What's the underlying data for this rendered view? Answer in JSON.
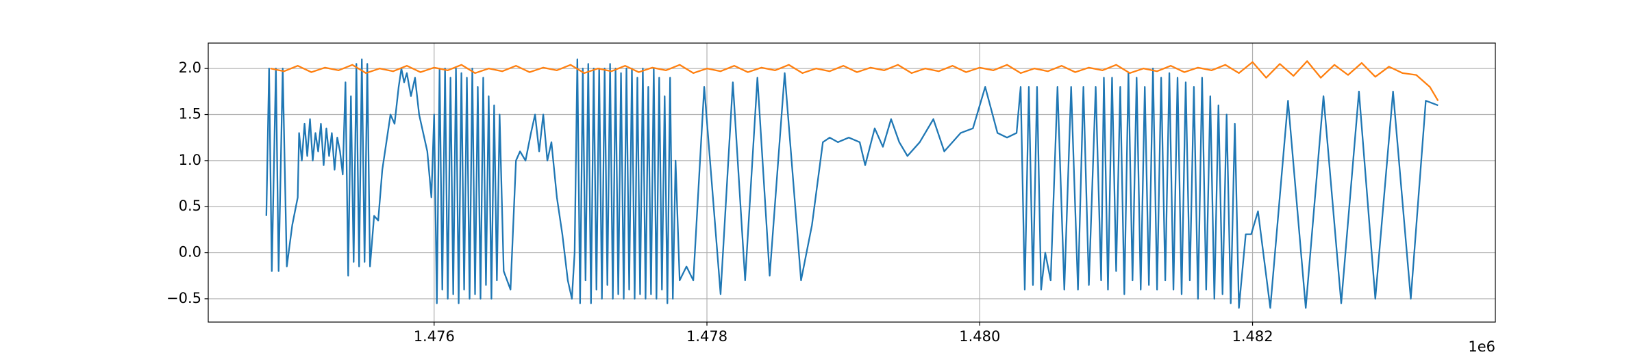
{
  "chart_data": {
    "type": "line",
    "xlim": [
      1474344,
      1483780
    ],
    "ylim": [
      -0.753,
      2.276
    ],
    "xticks": [
      {
        "value": 1476000,
        "label": "1.476"
      },
      {
        "value": 1478000,
        "label": "1.478"
      },
      {
        "value": 1480000,
        "label": "1.480"
      },
      {
        "value": 1482000,
        "label": "1.482"
      }
    ],
    "yticks": [
      {
        "value": -0.5,
        "label": "−0.5"
      },
      {
        "value": 0,
        "label": "0.0"
      },
      {
        "value": 0.5,
        "label": "0.5"
      },
      {
        "value": 1,
        "label": "1.0"
      },
      {
        "value": 1.5,
        "label": "1.5"
      },
      {
        "value": 2,
        "label": "2.0"
      }
    ],
    "x_offset_label": "1e6",
    "grid": true,
    "series": [
      {
        "color": "#1f77b4",
        "x": [
          1474770,
          1474790,
          1474810,
          1474840,
          1474860,
          1474890,
          1474920,
          1474960,
          1475000,
          1475010,
          1475030,
          1475050,
          1475070,
          1475090,
          1475110,
          1475130,
          1475150,
          1475170,
          1475190,
          1475210,
          1475230,
          1475250,
          1475270,
          1475290,
          1475310,
          1475330,
          1475350,
          1475370,
          1475390,
          1475410,
          1475430,
          1475450,
          1475470,
          1475490,
          1475510,
          1475530,
          1475560,
          1475590,
          1475620,
          1475650,
          1475680,
          1475710,
          1475740,
          1475760,
          1475780,
          1475800,
          1475830,
          1475860,
          1475890,
          1475920,
          1475950,
          1475980,
          1476000,
          1476020,
          1476040,
          1476060,
          1476080,
          1476100,
          1476120,
          1476140,
          1476160,
          1476180,
          1476200,
          1476220,
          1476240,
          1476260,
          1476280,
          1476300,
          1476320,
          1476340,
          1476360,
          1476380,
          1476400,
          1476420,
          1476440,
          1476460,
          1476480,
          1476510,
          1476560,
          1476600,
          1476630,
          1476670,
          1476710,
          1476740,
          1476770,
          1476800,
          1476830,
          1476860,
          1476900,
          1476940,
          1476980,
          1477010,
          1477030,
          1477050,
          1477070,
          1477090,
          1477110,
          1477130,
          1477150,
          1477170,
          1477190,
          1477210,
          1477230,
          1477250,
          1477270,
          1477290,
          1477310,
          1477330,
          1477350,
          1477370,
          1477390,
          1477410,
          1477430,
          1477450,
          1477470,
          1477490,
          1477510,
          1477530,
          1477550,
          1477570,
          1477590,
          1477610,
          1477630,
          1477650,
          1477670,
          1477690,
          1477710,
          1477730,
          1477750,
          1477770,
          1477800,
          1477850,
          1477900,
          1477980,
          1478100,
          1478190,
          1478280,
          1478370,
          1478460,
          1478570,
          1478690,
          1478770,
          1478850,
          1478900,
          1478960,
          1479040,
          1479120,
          1479160,
          1479230,
          1479290,
          1479350,
          1479410,
          1479470,
          1479560,
          1479660,
          1479740,
          1479860,
          1479950,
          1480040,
          1480130,
          1480200,
          1480270,
          1480300,
          1480330,
          1480360,
          1480390,
          1480420,
          1480450,
          1480480,
          1480520,
          1480570,
          1480620,
          1480670,
          1480720,
          1480760,
          1480800,
          1480850,
          1480890,
          1480910,
          1480940,
          1480970,
          1481000,
          1481030,
          1481060,
          1481090,
          1481120,
          1481150,
          1481180,
          1481210,
          1481240,
          1481270,
          1481300,
          1481330,
          1481360,
          1481390,
          1481420,
          1481450,
          1481480,
          1481510,
          1481540,
          1481570,
          1481600,
          1481630,
          1481660,
          1481690,
          1481720,
          1481750,
          1481780,
          1481810,
          1481840,
          1481870,
          1481900,
          1481950,
          1481990,
          1482040,
          1482130,
          1482260,
          1482390,
          1482520,
          1482650,
          1482780,
          1482900,
          1483030,
          1483160,
          1483270,
          1483360
        ],
        "values": [
          0.4,
          2.0,
          -0.2,
          2.0,
          -0.2,
          2.0,
          -0.15,
          0.3,
          0.6,
          1.3,
          1.0,
          1.4,
          1.05,
          1.45,
          1.0,
          1.3,
          1.1,
          1.4,
          0.95,
          1.35,
          1.05,
          1.3,
          0.9,
          1.25,
          1.1,
          0.85,
          1.85,
          -0.25,
          1.7,
          -0.1,
          2.05,
          -0.15,
          2.1,
          -0.1,
          2.05,
          -0.15,
          0.4,
          0.35,
          0.9,
          1.2,
          1.5,
          1.4,
          1.8,
          2.0,
          1.85,
          1.95,
          1.7,
          1.9,
          1.5,
          1.3,
          1.1,
          0.6,
          1.5,
          -0.55,
          2.0,
          -0.4,
          2.0,
          -0.5,
          1.9,
          -0.45,
          2.0,
          -0.55,
          1.95,
          -0.4,
          1.9,
          -0.5,
          2.0,
          -0.45,
          1.8,
          -0.5,
          1.9,
          -0.35,
          1.7,
          -0.5,
          1.6,
          -0.3,
          1.5,
          -0.2,
          -0.4,
          1.0,
          1.1,
          1.0,
          1.3,
          1.5,
          1.1,
          1.5,
          1.0,
          1.2,
          0.6,
          0.2,
          -0.3,
          -0.5,
          0.0,
          2.1,
          -0.55,
          2.0,
          -0.3,
          2.05,
          -0.55,
          2.0,
          -0.4,
          2.0,
          -0.5,
          2.0,
          -0.35,
          2.05,
          -0.5,
          2.0,
          -0.45,
          1.95,
          -0.5,
          2.0,
          -0.4,
          2.0,
          -0.5,
          1.9,
          -0.45,
          2.0,
          -0.5,
          1.8,
          -0.45,
          2.0,
          -0.5,
          1.9,
          -0.4,
          1.7,
          -0.55,
          1.9,
          -0.5,
          1.0,
          -0.3,
          -0.15,
          -0.3,
          1.8,
          -0.45,
          1.85,
          -0.3,
          1.9,
          -0.25,
          1.95,
          -0.3,
          0.3,
          1.2,
          1.25,
          1.2,
          1.25,
          1.2,
          0.95,
          1.35,
          1.15,
          1.45,
          1.2,
          1.05,
          1.2,
          1.45,
          1.1,
          1.3,
          1.35,
          1.8,
          1.3,
          1.25,
          1.3,
          1.8,
          -0.4,
          1.8,
          -0.35,
          1.8,
          -0.4,
          0.0,
          -0.3,
          1.8,
          -0.4,
          1.8,
          -0.4,
          1.8,
          -0.35,
          1.8,
          -0.3,
          1.9,
          -0.4,
          1.9,
          -0.2,
          1.8,
          -0.45,
          1.95,
          -0.3,
          1.9,
          -0.4,
          1.8,
          -0.35,
          2.0,
          -0.4,
          1.9,
          -0.3,
          1.95,
          -0.4,
          1.9,
          -0.45,
          1.85,
          -0.3,
          1.8,
          -0.5,
          1.9,
          -0.4,
          1.7,
          -0.5,
          1.6,
          -0.45,
          1.5,
          -0.55,
          1.4,
          -0.6,
          0.2,
          0.2,
          0.45,
          -0.6,
          1.65,
          -0.6,
          1.7,
          -0.55,
          1.75,
          -0.5,
          1.75,
          -0.5,
          1.65,
          1.6
        ]
      },
      {
        "color": "#ff7f0e",
        "x": [
          1474800,
          1474900,
          1475000,
          1475100,
          1475200,
          1475300,
          1475400,
          1475500,
          1475600,
          1475700,
          1475800,
          1475900,
          1476000,
          1476100,
          1476200,
          1476300,
          1476400,
          1476500,
          1476600,
          1476700,
          1476800,
          1476900,
          1477000,
          1477100,
          1477200,
          1477300,
          1477400,
          1477500,
          1477600,
          1477700,
          1477800,
          1477900,
          1478000,
          1478100,
          1478200,
          1478300,
          1478400,
          1478500,
          1478600,
          1478700,
          1478800,
          1478900,
          1479000,
          1479100,
          1479200,
          1479300,
          1479400,
          1479500,
          1479600,
          1479700,
          1479800,
          1479900,
          1480000,
          1480100,
          1480200,
          1480300,
          1480400,
          1480500,
          1480600,
          1480700,
          1480800,
          1480900,
          1481000,
          1481100,
          1481200,
          1481300,
          1481400,
          1481500,
          1481600,
          1481700,
          1481800,
          1481900,
          1482000,
          1482100,
          1482200,
          1482300,
          1482400,
          1482500,
          1482600,
          1482700,
          1482800,
          1482900,
          1483000,
          1483100,
          1483200,
          1483300,
          1483360
        ],
        "values": [
          2.0,
          1.97,
          2.03,
          1.96,
          2.01,
          1.98,
          2.04,
          1.95,
          2.0,
          1.97,
          2.03,
          1.96,
          2.01,
          1.98,
          2.04,
          1.95,
          2.0,
          1.97,
          2.03,
          1.96,
          2.01,
          1.98,
          2.04,
          1.95,
          2.0,
          1.97,
          2.03,
          1.96,
          2.01,
          1.98,
          2.04,
          1.95,
          2.0,
          1.97,
          2.03,
          1.96,
          2.01,
          1.98,
          2.04,
          1.95,
          2.0,
          1.97,
          2.03,
          1.96,
          2.01,
          1.98,
          2.04,
          1.95,
          2.0,
          1.97,
          2.03,
          1.96,
          2.01,
          1.98,
          2.04,
          1.95,
          2.0,
          1.97,
          2.03,
          1.96,
          2.01,
          1.98,
          2.04,
          1.95,
          2.0,
          1.97,
          2.03,
          1.96,
          2.01,
          1.98,
          2.04,
          1.95,
          2.07,
          1.9,
          2.05,
          1.92,
          2.08,
          1.9,
          2.04,
          1.93,
          2.06,
          1.91,
          2.02,
          1.95,
          1.93,
          1.8,
          1.65
        ]
      }
    ]
  }
}
